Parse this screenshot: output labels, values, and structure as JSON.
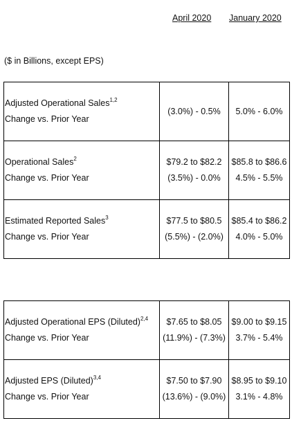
{
  "columns": {
    "april": "April 2020",
    "january": "January 2020"
  },
  "units_note": "($ in Billions, except EPS)",
  "sales_rows": [
    {
      "label": "Adjusted Operational Sales",
      "sup": "1,2",
      "sublabel": "Change vs. Prior Year",
      "april": [
        "",
        "(3.0%) - 0.5%"
      ],
      "january": [
        "",
        "5.0% - 6.0%"
      ]
    },
    {
      "label": "Operational Sales",
      "sup": "2",
      "sublabel": "Change vs. Prior Year",
      "april": [
        "$79.2 to $82.2",
        "(3.5%) - 0.0%"
      ],
      "january": [
        "$85.8 to $86.6",
        "4.5% - 5.5%"
      ]
    },
    {
      "label": "Estimated Reported Sales",
      "sup": "3",
      "sublabel": "Change vs. Prior Year",
      "april": [
        "$77.5 to $80.5",
        "(5.5%) - (2.0%)"
      ],
      "january": [
        "$85.4 to $86.2",
        "4.0% - 5.0%"
      ]
    }
  ],
  "eps_rows": [
    {
      "label": "Adjusted Operational EPS (Diluted)",
      "sup": "2,4",
      "sublabel": "Change vs. Prior Year",
      "april": [
        "$7.65 to $8.05",
        "(11.9%) - (7.3%)"
      ],
      "january": [
        "$9.00 to $9.15",
        "3.7% - 5.4%"
      ]
    },
    {
      "label": "Adjusted EPS (Diluted)",
      "sup": "3,4",
      "sublabel": "Change vs. Prior Year",
      "april": [
        "$7.50 to $7.90",
        "(13.6%) - (9.0%)"
      ],
      "january": [
        "$8.95 to $9.10",
        "3.1% - 4.8%"
      ]
    }
  ]
}
